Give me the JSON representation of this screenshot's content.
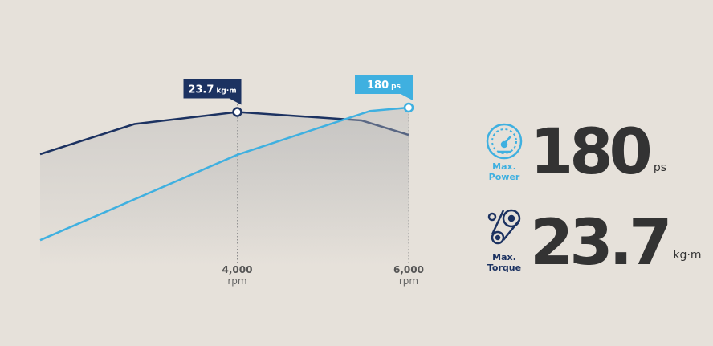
{
  "chart_data": {
    "type": "line",
    "xlim": [
      1700,
      6000
    ],
    "xticks": [
      {
        "value": 4000,
        "label": "4,000"
      },
      {
        "value": 6000,
        "label": "6,000"
      }
    ],
    "x_unit": "rpm",
    "ylim": [
      11,
      25
    ],
    "y2lim": [
      40,
      190
    ],
    "series": [
      {
        "color": "#1c3261",
        "x": [
          1700,
          2800,
          4000,
          5450,
          6000
        ],
        "values": [
          20.2,
          22.7,
          23.7,
          23.0,
          21.8
        ],
        "callout": {
          "value": "23.7",
          "unit": "kg·m"
        }
      },
      {
        "color": "#3fb0e0",
        "axis": "y2",
        "x": [
          1700,
          4000,
          5550,
          6000
        ],
        "values": [
          62,
          138,
          177,
          180
        ],
        "callout": {
          "value": "180",
          "unit": "ps"
        }
      }
    ]
  },
  "specs": [
    {
      "label": [
        "Max.",
        "Power"
      ],
      "value": "180",
      "unit": "ps",
      "color": "#3fb0e0"
    },
    {
      "label": [
        "Max.",
        "Torque"
      ],
      "value": "23.7",
      "unit": "kg·m",
      "color": "#1c3261"
    }
  ]
}
